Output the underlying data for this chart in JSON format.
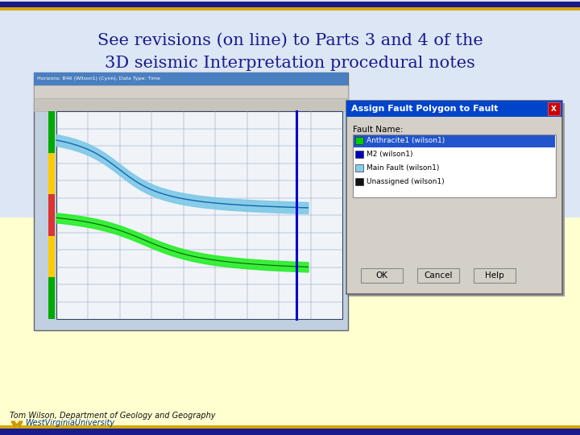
{
  "title_line1": "See revisions (on line) to Parts 3 and 4 of the",
  "title_line2": "3D seismic Interpretation procedural notes",
  "title_color": "#1a1a8c",
  "title_fontsize": 15,
  "bg_top_color": "#dce6f5",
  "bg_bottom_color": "#ffffcc",
  "border_color": "#1a1a8c",
  "accent_color": "#d4a800",
  "footer_text": "Tom Wilson, Department of Geology and Geography",
  "footer_fontsize": 7,
  "wvu_text": "WestVirginiaUniversity",
  "wvu_color": "#003087",
  "dialog_title_text": "Assign Fault Polygon to Fault",
  "fault_name_label": "Fault Name:",
  "fault_names": [
    "Anthracite1 (wilson1)",
    "M2 (wilson1)",
    "Main Fault (wilson1)",
    "Unassigned (wilson1)"
  ],
  "fault_colors": [
    "#00cc00",
    "#0000bb",
    "#87ceeb",
    "#111111"
  ],
  "fault_selected": 0,
  "ss_titlebar_text": "Horizons: B46 (Wilson1) (Cynn), Data Type: Time",
  "btn_labels": [
    "OK",
    "Cancel",
    "Help"
  ]
}
